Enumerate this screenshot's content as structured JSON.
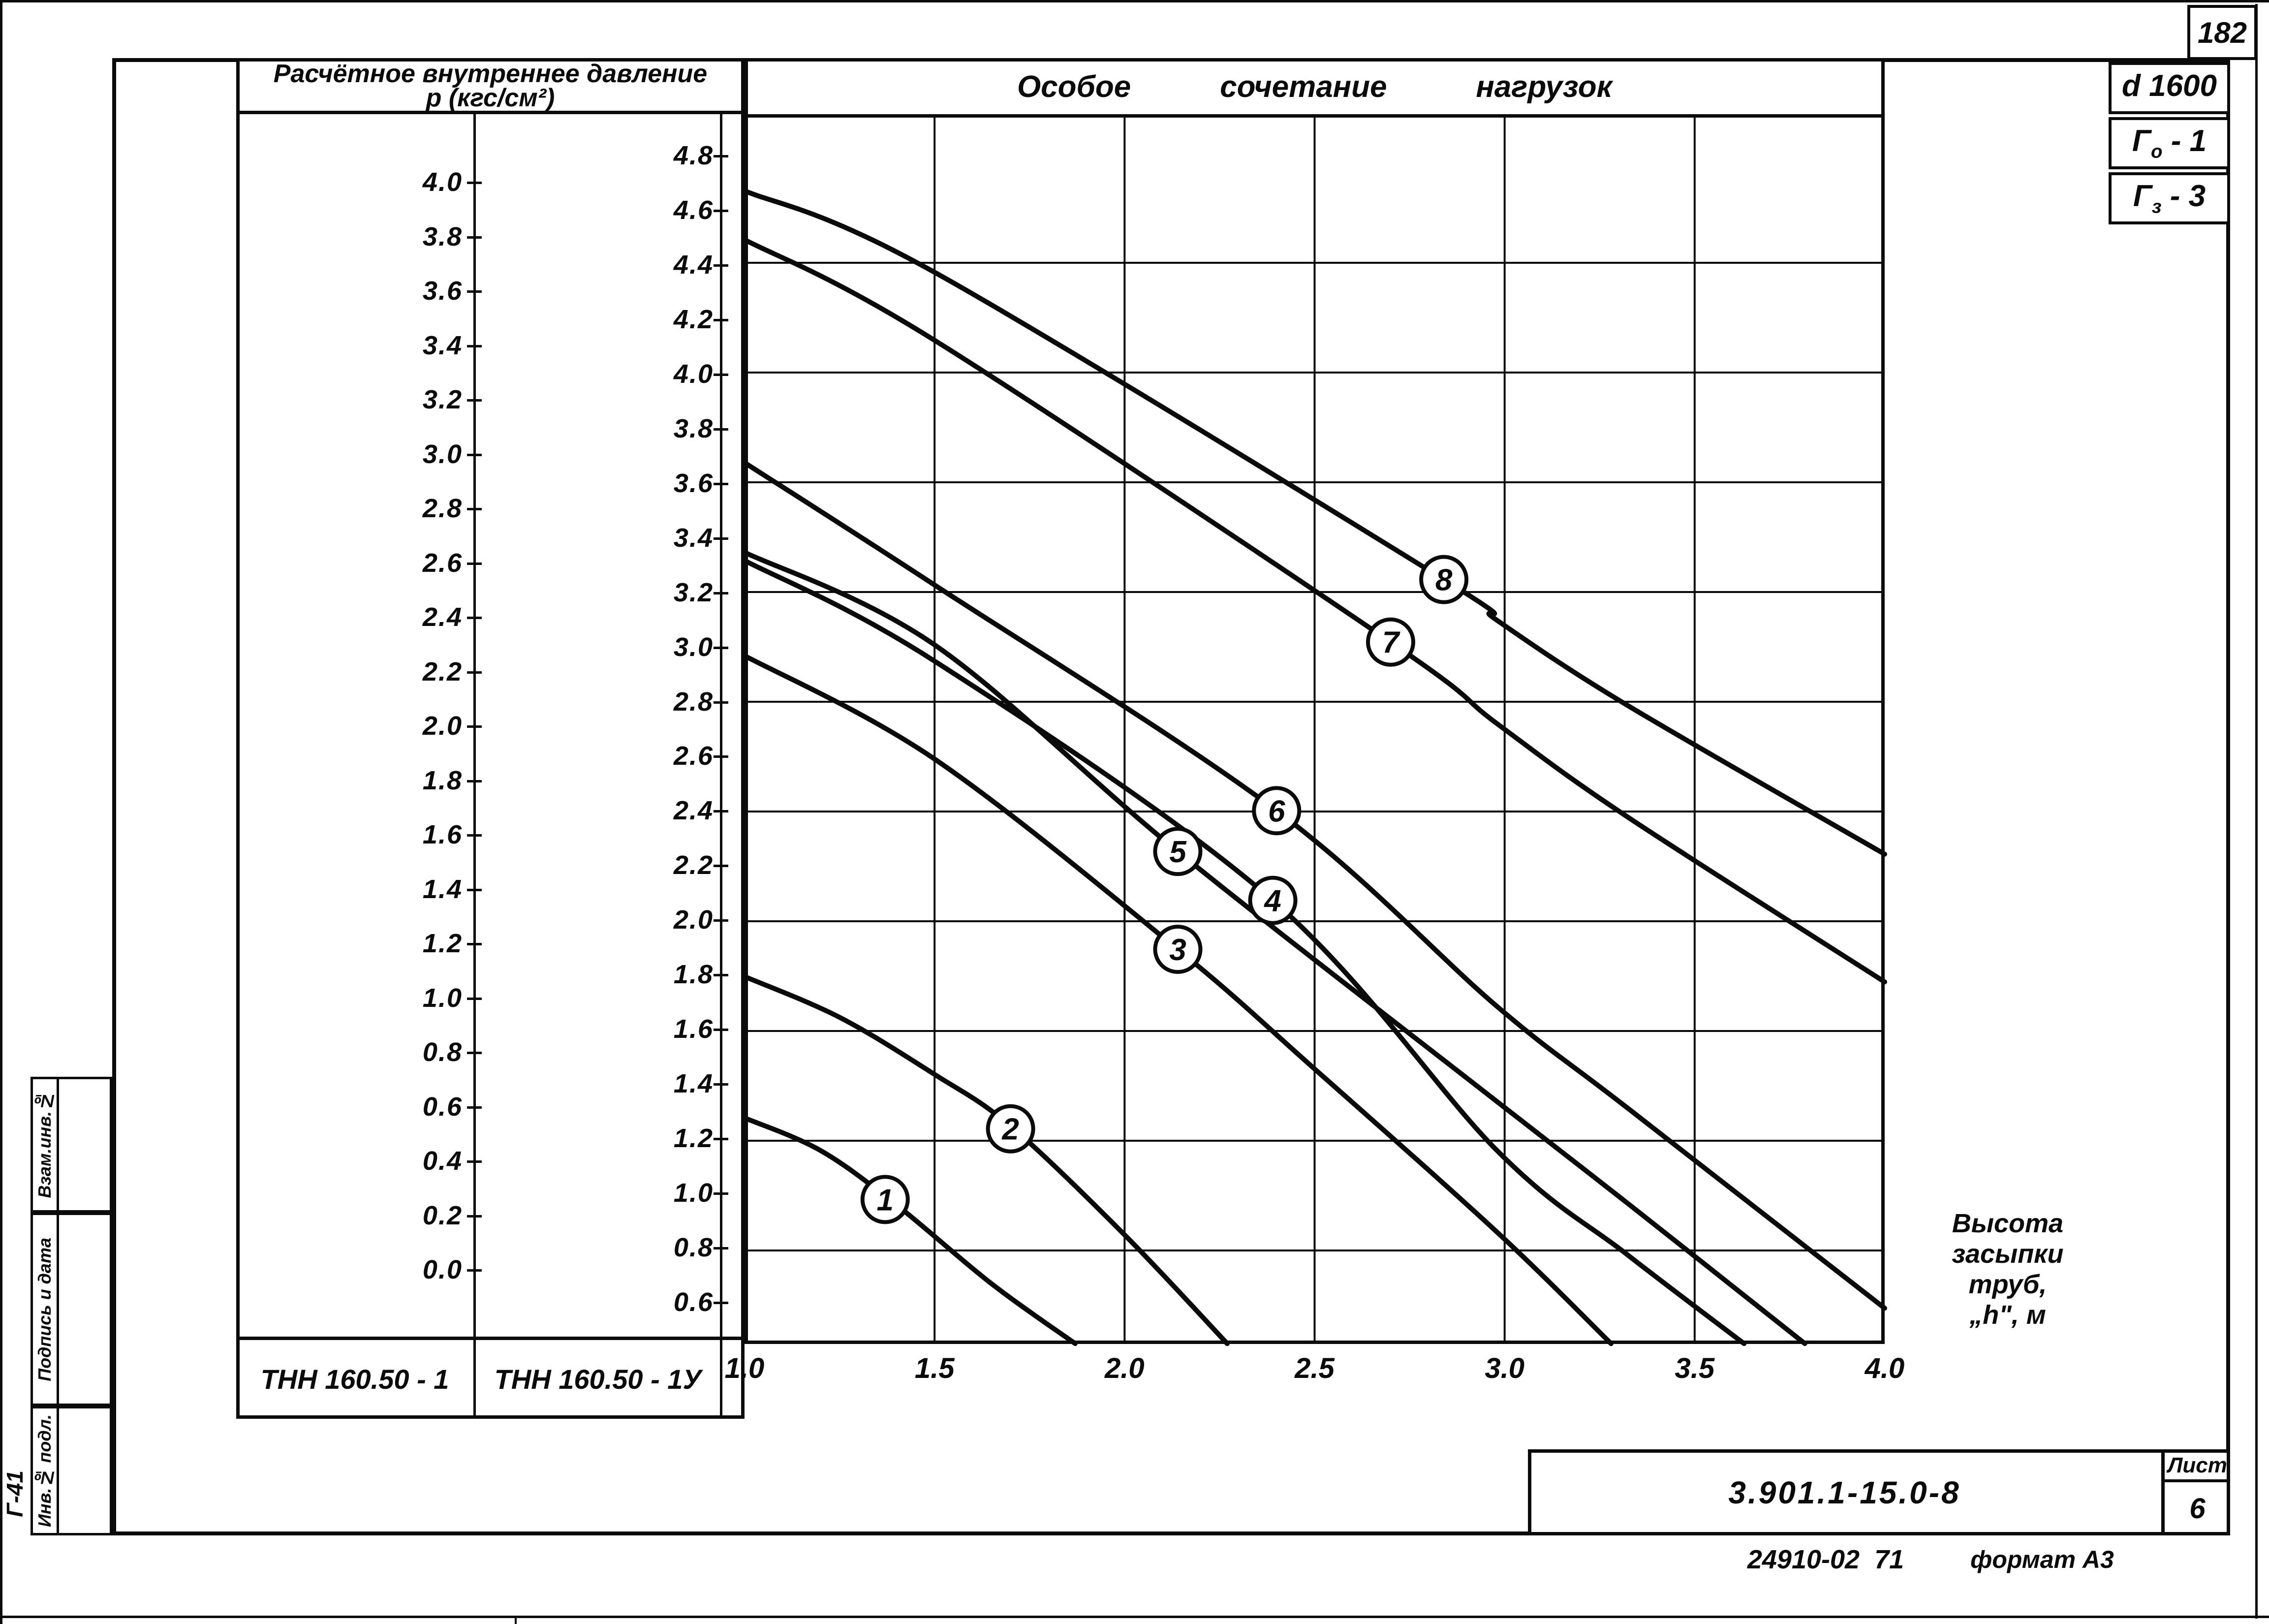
{
  "page": {
    "number": "182",
    "doc_number": "3.901.1-15.0-8",
    "sheet_word": "Лист",
    "sheet_number": "6",
    "footer_code": "24910-02  71",
    "footer_format": "формат А3",
    "side_code": "Г-41"
  },
  "corner_codes": [
    {
      "base": "d 1600",
      "sub": "",
      "tail": ""
    },
    {
      "base": "Г",
      "sub": "о",
      "tail": " - 1"
    },
    {
      "base": "Г",
      "sub": "з",
      "tail": " - 3"
    }
  ],
  "stamp_column": {
    "rows": [
      "Взам.инв.№",
      "Подпись и дата",
      "Инв.№ подл."
    ]
  },
  "pressure_panel": {
    "title_line1": "Расчётное внутреннее давление",
    "title_line2": "p (кгс/см²)",
    "left_scale_values": [
      "4.0",
      "3.8",
      "3.6",
      "3.4",
      "3.2",
      "3.0",
      "2.8",
      "2.6",
      "2.4",
      "2.2",
      "2.0",
      "1.8",
      "1.6",
      "1.4",
      "1.2",
      "1.0",
      "0.8",
      "0.6",
      "0.4",
      "0.2",
      "0.0"
    ],
    "right_scale_values": [
      "4.8",
      "4.6",
      "4.4",
      "4.2",
      "4.0",
      "3.8",
      "3.6",
      "3.4",
      "3.2",
      "3.0",
      "2.8",
      "2.6",
      "2.4",
      "2.2",
      "2.0",
      "1.8",
      "1.6",
      "1.4",
      "1.2",
      "1.0",
      "0.8",
      "0.6"
    ],
    "left_pipe_label": "ТНН  160.50 - 1",
    "right_pipe_label": "ТНН 160.50 - 1У"
  },
  "chart": {
    "title": "Особое    сочетание    нагрузок",
    "x_ticks_display": [
      "1.0",
      "1.5",
      "2.0",
      "2.5",
      "3.0",
      "3.5",
      "4.0"
    ],
    "x_note_lines": [
      "Высота",
      "засыпки",
      "труб,",
      "„h\", м"
    ]
  },
  "chart_data": {
    "type": "line",
    "title": "Особое сочетание нагрузок",
    "xlabel": "Высота засыпки труб „h\", м",
    "ylabel": "Расчётное внутреннее давление p (кгс/см²)",
    "xlim": [
      1.0,
      4.0
    ],
    "x_ticks": [
      1.0,
      1.5,
      2.0,
      2.5,
      3.0,
      3.5,
      4.0
    ],
    "ylim_left_scale_TNN_160_50_1": [
      0.0,
      4.0
    ],
    "ylim_right_scale_TNN_160_50_1U": [
      0.6,
      4.8
    ],
    "y_tick_step": 0.2,
    "grid": "on",
    "series": [
      {
        "name": "1",
        "badge_at": [
          1.37,
          0.26
        ],
        "points": [
          [
            1.0,
            0.56
          ],
          [
            1.2,
            0.44
          ],
          [
            1.4,
            0.24
          ],
          [
            1.65,
            -0.05
          ],
          [
            1.87,
            -0.27
          ]
        ]
      },
      {
        "name": "2",
        "badge_at": [
          1.7,
          0.52
        ],
        "points": [
          [
            1.0,
            1.08
          ],
          [
            1.25,
            0.93
          ],
          [
            1.5,
            0.72
          ],
          [
            1.7,
            0.53
          ],
          [
            2.0,
            0.13
          ],
          [
            2.27,
            -0.27
          ]
        ]
      },
      {
        "name": "3",
        "badge_at": [
          2.14,
          1.18
        ],
        "points": [
          [
            1.0,
            2.26
          ],
          [
            1.5,
            1.88
          ],
          [
            2.14,
            1.18
          ],
          [
            2.5,
            0.74
          ],
          [
            2.98,
            0.14
          ],
          [
            3.28,
            -0.27
          ]
        ]
      },
      {
        "name": "4",
        "badge_at": [
          2.39,
          1.36
        ],
        "points": [
          [
            1.0,
            2.61
          ],
          [
            1.5,
            2.24
          ],
          [
            2.39,
            1.36
          ],
          [
            2.98,
            0.44
          ],
          [
            3.32,
            0.06
          ],
          [
            3.63,
            -0.27
          ]
        ]
      },
      {
        "name": "5",
        "badge_at": [
          2.14,
          1.54
        ],
        "points": [
          [
            1.0,
            2.64
          ],
          [
            1.5,
            2.3
          ],
          [
            2.14,
            1.54
          ],
          [
            2.98,
            0.62
          ],
          [
            3.32,
            0.25
          ],
          [
            3.79,
            -0.27
          ]
        ]
      },
      {
        "name": "6",
        "badge_at": [
          2.4,
          1.69
        ],
        "points": [
          [
            1.0,
            2.97
          ],
          [
            1.5,
            2.52
          ],
          [
            2.4,
            1.69
          ],
          [
            2.98,
            0.97
          ],
          [
            3.32,
            0.6
          ],
          [
            4.0,
            -0.14
          ]
        ]
      },
      {
        "name": "7",
        "badge_at": [
          2.7,
          2.31
        ],
        "points": [
          [
            1.0,
            3.79
          ],
          [
            1.5,
            3.42
          ],
          [
            2.7,
            2.31
          ],
          [
            2.98,
            2.01
          ],
          [
            3.32,
            1.67
          ],
          [
            4.0,
            1.06
          ]
        ]
      },
      {
        "name": "8",
        "badge_at": [
          2.84,
          2.54
        ],
        "points": [
          [
            1.0,
            3.97
          ],
          [
            1.5,
            3.67
          ],
          [
            2.84,
            2.54
          ],
          [
            2.98,
            2.39
          ],
          [
            3.32,
            2.08
          ],
          [
            4.0,
            1.53
          ]
        ]
      }
    ],
    "ink_color": "#0b0b0b"
  }
}
